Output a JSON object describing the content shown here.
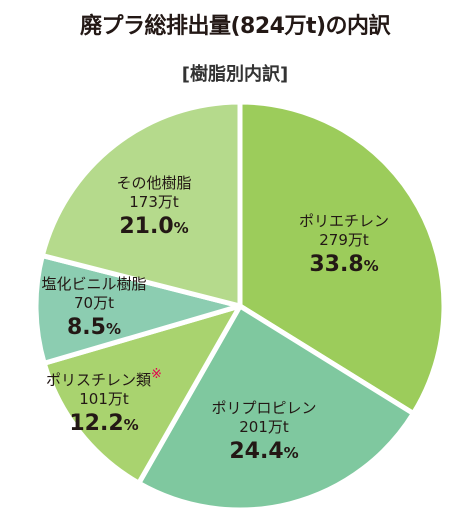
{
  "title": "廃プラ総排出量(824万t)の内訳",
  "subtitle": "[樹脂別内訳]",
  "colors": {
    "polyethylene": "#9ccc5b",
    "polypropylene": "#7fc89f",
    "polystyrene": "#a9d36f",
    "pvc": "#8ccdb1",
    "other": "#b5da8c",
    "separator": "#ffffff"
  },
  "chart_data": {
    "type": "pie",
    "title": "廃プラ総排出量(824万t)の内訳",
    "subtitle": "[樹脂別内訳]",
    "start": "12 o'clock",
    "direction": "clockwise",
    "slices": [
      {
        "name": "ポリエチレン",
        "amount": "279万t",
        "value": 33.8,
        "percent_label": "33.8",
        "unit": "%",
        "mark": "",
        "color_key": "polyethylene"
      },
      {
        "name": "ポリプロピレン",
        "amount": "201万t",
        "value": 24.4,
        "percent_label": "24.4",
        "unit": "%",
        "mark": "",
        "color_key": "polypropylene"
      },
      {
        "name": "ポリスチレン類",
        "amount": "101万t",
        "value": 12.2,
        "percent_label": "12.2",
        "unit": "%",
        "mark": "※",
        "color_key": "polystyrene"
      },
      {
        "name": "塩化ビニル樹脂",
        "amount": "70万t",
        "value": 8.5,
        "percent_label": "8.5",
        "unit": "%",
        "mark": "",
        "color_key": "pvc"
      },
      {
        "name": "その他樹脂",
        "amount": "173万t",
        "value": 21.0,
        "percent_label": "21.0",
        "unit": "%",
        "mark": "",
        "color_key": "other"
      }
    ]
  }
}
